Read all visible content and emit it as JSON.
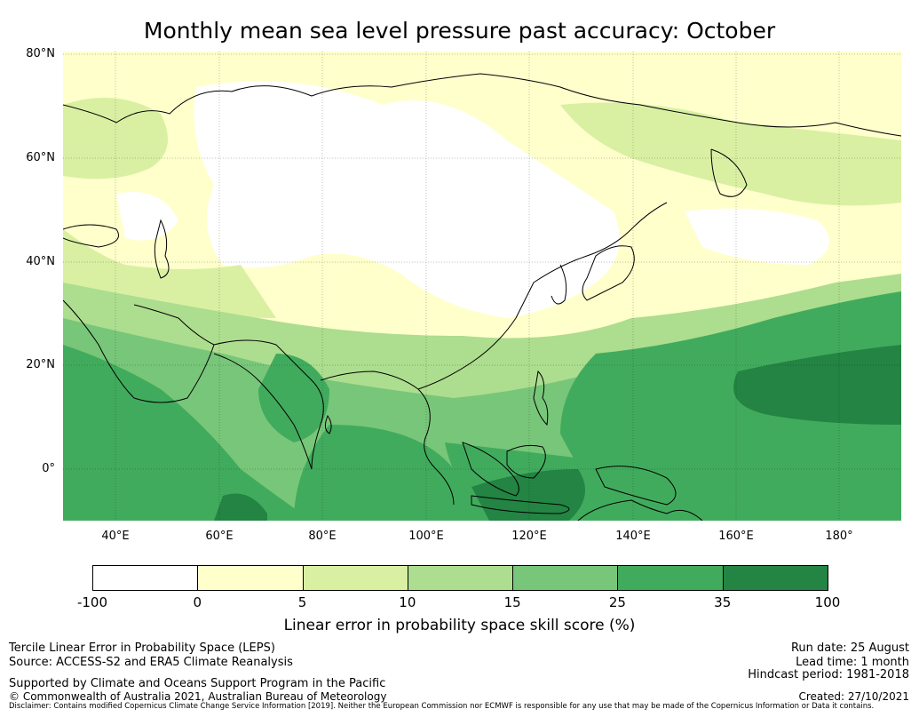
{
  "title": "Monthly mean sea level pressure past accuracy: October",
  "map": {
    "lat_labels": [
      "80°N",
      "60°N",
      "40°N",
      "20°N",
      "0°"
    ],
    "lon_labels": [
      "40°E",
      "60°E",
      "80°E",
      "100°E",
      "120°E",
      "140°E",
      "160°E",
      "180°"
    ],
    "lat_range": [
      -10,
      81
    ],
    "lon_range": [
      30,
      192
    ]
  },
  "colorbar": {
    "ticks": [
      "-100",
      "0",
      "5",
      "10",
      "15",
      "25",
      "35",
      "100"
    ],
    "colors": [
      "#ffffff",
      "#ffffcc",
      "#d9f0a3",
      "#addd8e",
      "#78c679",
      "#41ab5d",
      "#238443"
    ],
    "label": "Linear error in probability space skill score (%)"
  },
  "footer": {
    "left": [
      "Tercile Linear Error in Probability Space (LEPS)",
      "Source: ACCESS-S2 and ERA5 Climate Reanalysis"
    ],
    "supported": "Supported by Climate and Oceans Support Program in the Pacific",
    "copyright": "© Commonwealth of Australia 2021, Australian Bureau of Meteorology",
    "right": [
      "Run date: 25 August",
      "Lead time: 1 month",
      "Hindcast period: 1981-2018"
    ],
    "created": "Created: 27/10/2021",
    "disclaimer": "Disclaimer: Contains modified Copernicus Climate Change Service Information [2019]. Neither the European Commission nor ECMWF is responsible for any use that may be made of the Copernicus Information or Data it contains."
  }
}
